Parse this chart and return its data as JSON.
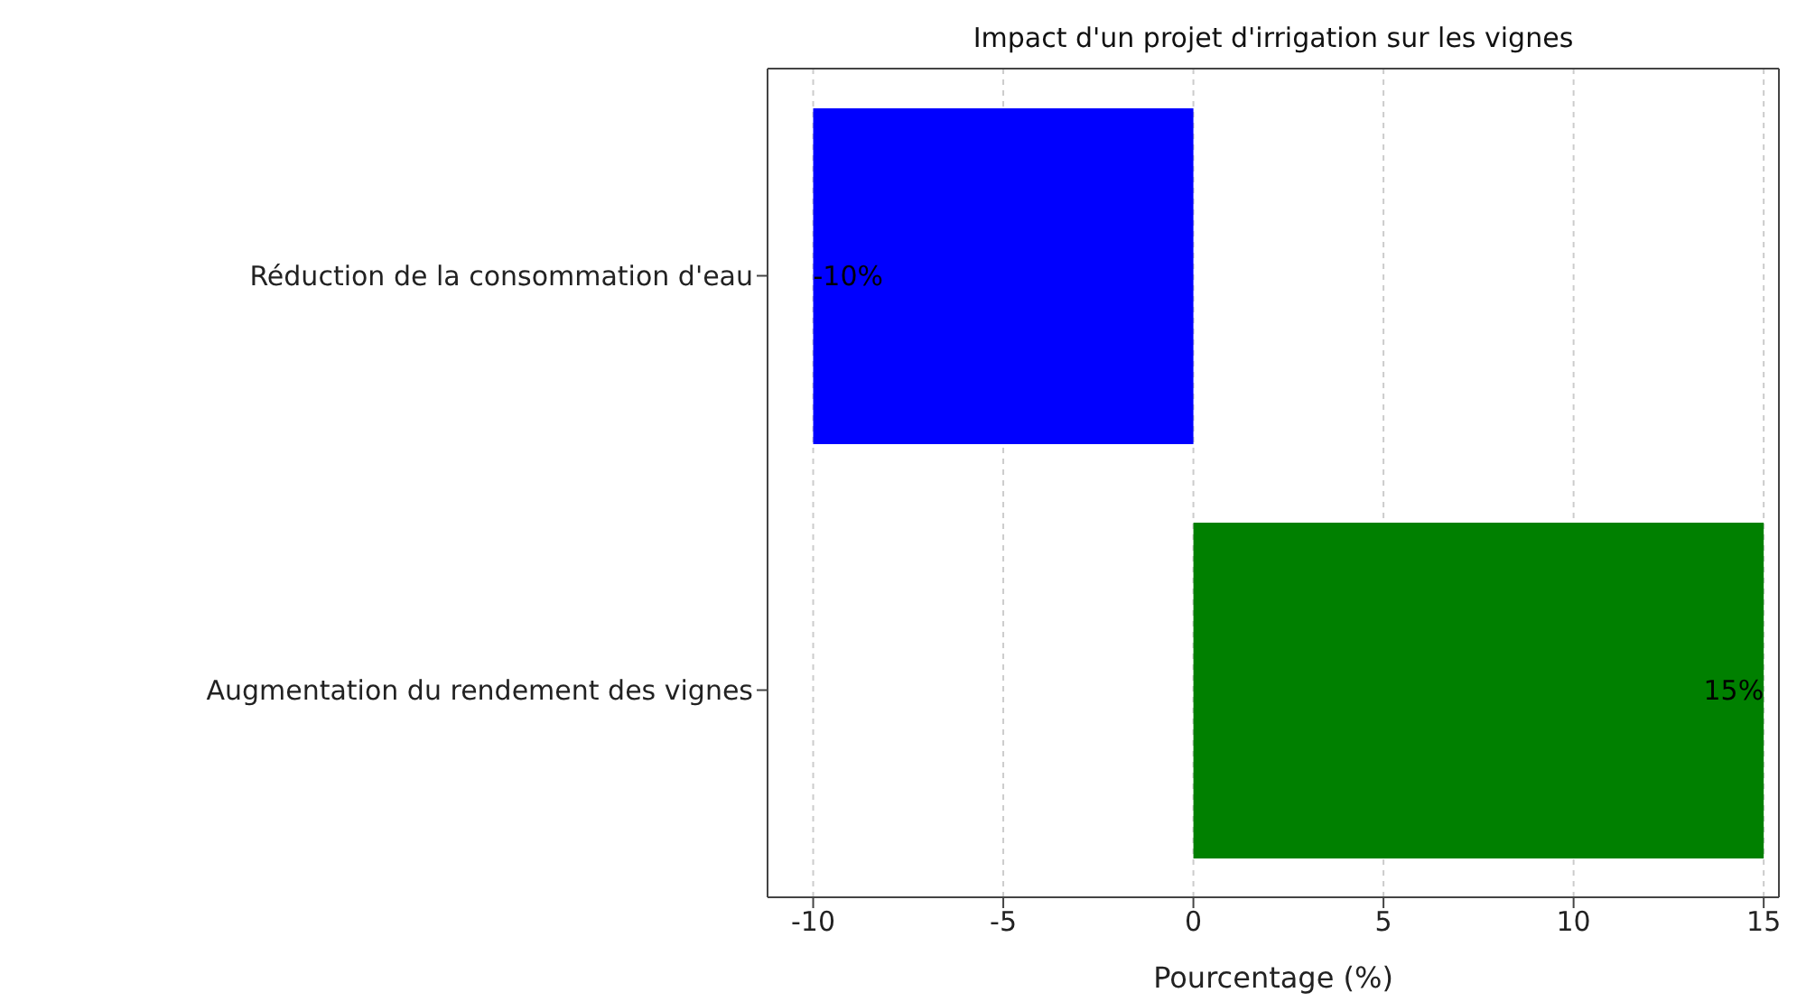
{
  "chart_data": {
    "type": "bar",
    "orientation": "horizontal",
    "title": "Impact d'un projet d'irrigation sur les vignes",
    "xlabel": "Pourcentage (%)",
    "categories": [
      "Réduction de la consommation d'eau",
      "Augmentation du rendement des vignes"
    ],
    "values": [
      -10,
      15
    ],
    "colors": [
      "#0000ff",
      "#008000"
    ],
    "value_labels": [
      "-10%",
      "15%"
    ],
    "xlim": [
      -11.2,
      15.4
    ],
    "xticks": [
      -10,
      -5,
      0,
      5,
      10,
      15
    ],
    "grid": "x",
    "legend": false
  }
}
